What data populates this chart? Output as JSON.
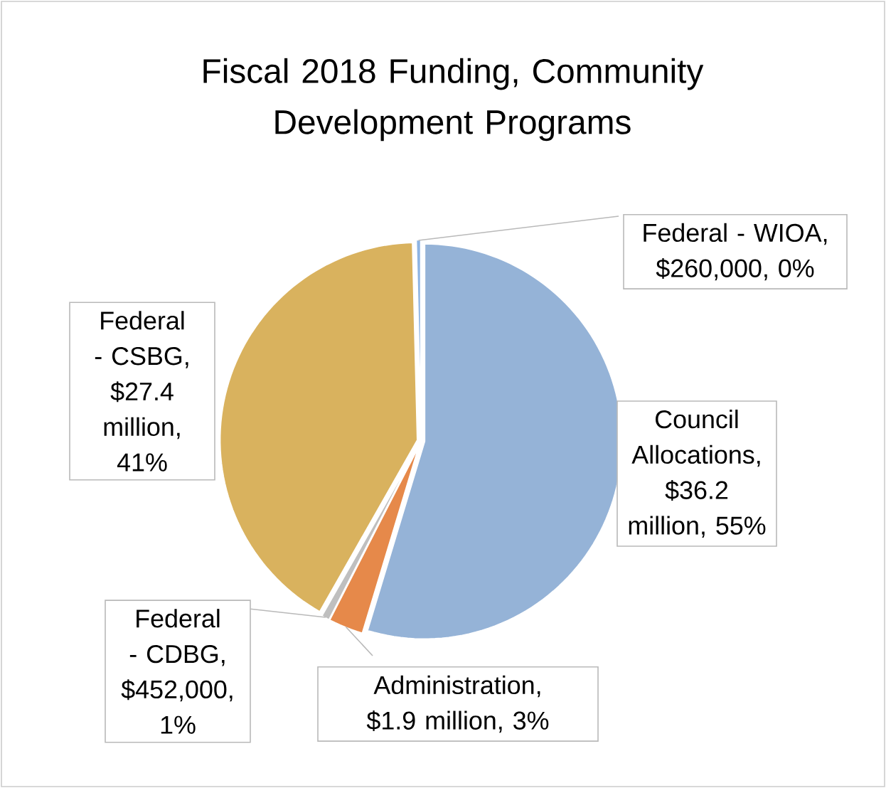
{
  "chart_data": {
    "type": "pie",
    "title": "Fiscal 2018 Funding, Community Development Programs",
    "categories": [
      "Council Allocations",
      "Administration",
      "Federal - CDBG",
      "Federal - CSBG",
      "Federal - WIOA"
    ],
    "values": [
      36200000,
      1900000,
      452000,
      27400000,
      260000
    ],
    "value_labels": [
      ", $36.2 million, 55%",
      ", $1.9 million, 3%",
      ", $452,000, 1%",
      ", $27.4 million, 41%",
      ", $260,000, 0%"
    ],
    "colors": [
      "#95b3d7",
      "#e6894a",
      "#bfbfbf",
      "#d9b25e",
      "#8eb4e3"
    ]
  }
}
